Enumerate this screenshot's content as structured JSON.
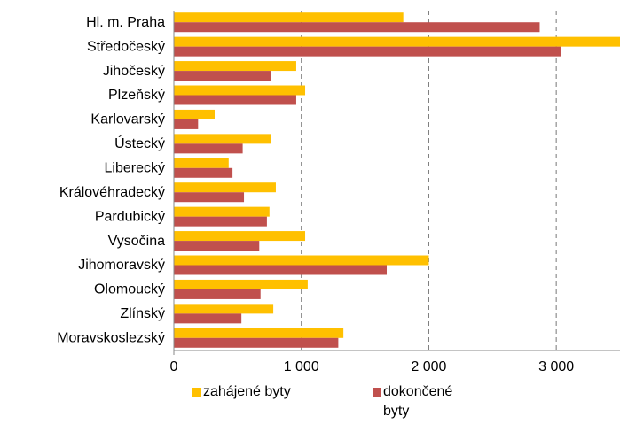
{
  "chart_data": {
    "type": "barh",
    "categories": [
      "Hl. m. Praha",
      "Středočeský",
      "Jihočeský",
      "Plzeňský",
      "Karlovarský",
      "Ústecký",
      "Liberecký",
      "Královéhradecký",
      "Pardubický",
      "Vysočina",
      "Jihomoravský",
      "Olomoucký",
      "Zlínský",
      "Moravskoslezský"
    ],
    "series": [
      {
        "name": "zahájené byty",
        "color": "#ffc000",
        "values": [
          1800,
          3500,
          960,
          1030,
          320,
          760,
          430,
          800,
          750,
          1030,
          2000,
          1050,
          780,
          1330
        ]
      },
      {
        "name": "dokončené byty",
        "color": "#c0504d",
        "values": [
          2870,
          3040,
          760,
          960,
          190,
          540,
          460,
          550,
          730,
          670,
          1670,
          680,
          530,
          1290
        ]
      }
    ],
    "xlim": [
      0,
      3500
    ],
    "xticks": [
      0,
      {
        "value": 1000,
        "label": "1 000"
      },
      {
        "value": 2000,
        "label": "2 000"
      },
      {
        "value": 3000,
        "label": "3 000"
      }
    ],
    "grid": true,
    "legend": "bottom"
  }
}
